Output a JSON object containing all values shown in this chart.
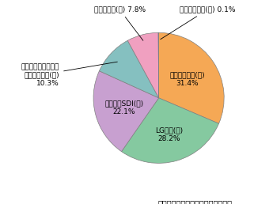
{
  "caption": "ディスプレイサーチ資料により作成",
  "slices": [
    {
      "label": "松下電器産業(日)\n31.4%",
      "value": 31.4,
      "color": "#F5A855"
    },
    {
      "label": "LG電子(韓)\n28.2%",
      "value": 28.2,
      "color": "#85C9A0"
    },
    {
      "label": "サムスンSDI(韓)\n22.1%",
      "value": 22.1,
      "color": "#C8A0D0"
    },
    {
      "label": "富士通日立プラズマ\nディスプレイ(日)\n10.3%",
      "value": 10.3,
      "color": "#85C0C0"
    },
    {
      "label": "パイオニア(日) 7.8%",
      "value": 7.8,
      "color": "#F0A0C0"
    },
    {
      "label": "オリオン電機(日) 0.1%",
      "value": 0.1,
      "color": "#C8C8E8"
    }
  ],
  "pie_edge_color": "#808080",
  "pie_edge_width": 0.5,
  "fontsize": 6.5,
  "caption_fontsize": 7
}
